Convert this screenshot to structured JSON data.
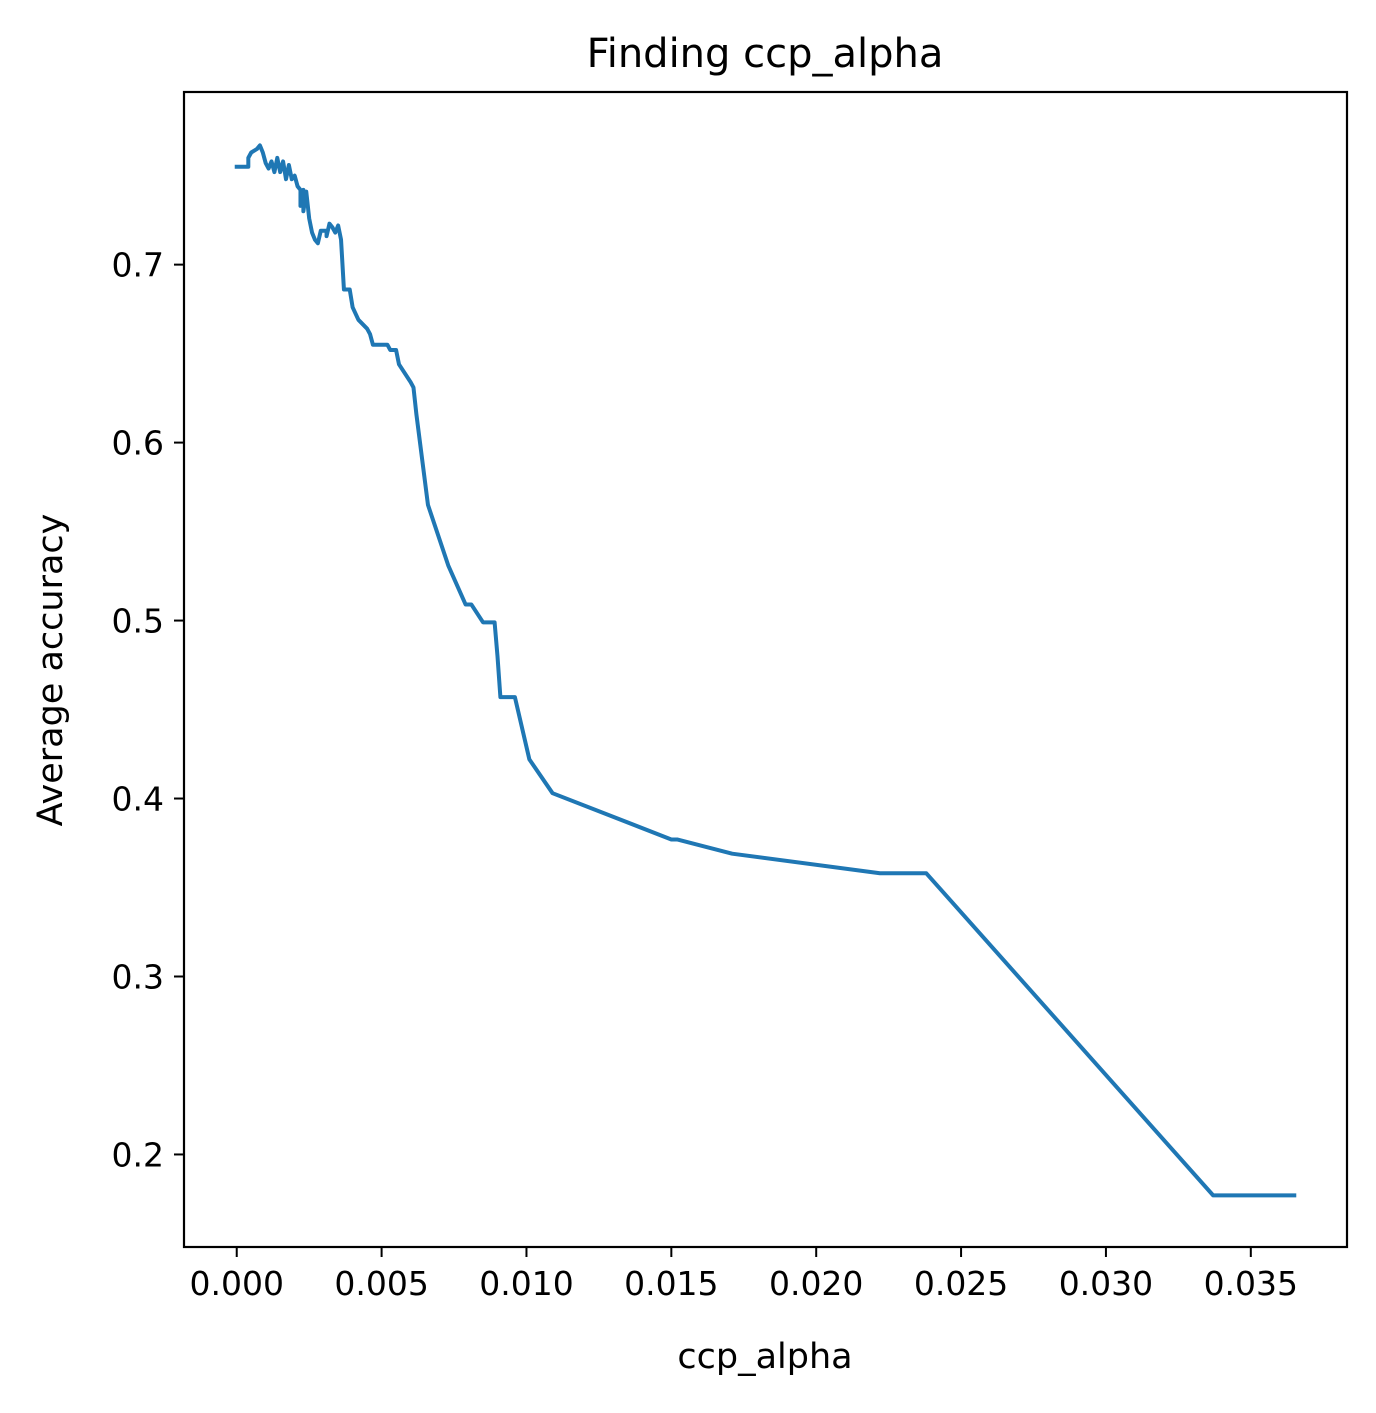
{
  "chart_data": {
    "type": "line",
    "title": "Finding ccp_alpha",
    "xlabel": "ccp_alpha",
    "ylabel": "Average accuracy",
    "xlim": [
      -0.00182,
      0.03832
    ],
    "ylim": [
      0.148,
      0.797
    ],
    "grid": false,
    "legend": "none",
    "line_color": "#1f77b4",
    "x_ticks": [
      {
        "value": 0.0,
        "label": "0.000"
      },
      {
        "value": 0.005,
        "label": "0.005"
      },
      {
        "value": 0.01,
        "label": "0.010"
      },
      {
        "value": 0.015,
        "label": "0.015"
      },
      {
        "value": 0.02,
        "label": "0.020"
      },
      {
        "value": 0.025,
        "label": "0.025"
      },
      {
        "value": 0.03,
        "label": "0.030"
      },
      {
        "value": 0.035,
        "label": "0.035"
      }
    ],
    "y_ticks": [
      {
        "value": 0.2,
        "label": "0.2"
      },
      {
        "value": 0.3,
        "label": "0.3"
      },
      {
        "value": 0.4,
        "label": "0.4"
      },
      {
        "value": 0.5,
        "label": "0.5"
      },
      {
        "value": 0.6,
        "label": "0.6"
      },
      {
        "value": 0.7,
        "label": "0.7"
      }
    ],
    "series": [
      {
        "points": [
          [
            0.0,
            0.755
          ],
          [
            0.0004,
            0.755
          ],
          [
            0.0004,
            0.76
          ],
          [
            0.0005,
            0.763
          ],
          [
            0.0007,
            0.765
          ],
          [
            0.0008,
            0.767
          ],
          [
            0.0009,
            0.763
          ],
          [
            0.001,
            0.757
          ],
          [
            0.0011,
            0.754
          ],
          [
            0.0012,
            0.758
          ],
          [
            0.0013,
            0.752
          ],
          [
            0.0014,
            0.76
          ],
          [
            0.0015,
            0.752
          ],
          [
            0.0016,
            0.758
          ],
          [
            0.0017,
            0.748
          ],
          [
            0.0018,
            0.756
          ],
          [
            0.0019,
            0.748
          ],
          [
            0.002,
            0.75
          ],
          [
            0.0021,
            0.744
          ],
          [
            0.0022,
            0.742
          ],
          [
            0.0022,
            0.733
          ],
          [
            0.0023,
            0.742
          ],
          [
            0.0023,
            0.73
          ],
          [
            0.0024,
            0.741
          ],
          [
            0.0025,
            0.726
          ],
          [
            0.0026,
            0.718
          ],
          [
            0.0027,
            0.714
          ],
          [
            0.0028,
            0.712
          ],
          [
            0.0029,
            0.719
          ],
          [
            0.0031,
            0.719
          ],
          [
            0.0031,
            0.716
          ],
          [
            0.0032,
            0.723
          ],
          [
            0.0033,
            0.721
          ],
          [
            0.0034,
            0.718
          ],
          [
            0.0035,
            0.722
          ],
          [
            0.0036,
            0.714
          ],
          [
            0.0037,
            0.686
          ],
          [
            0.0039,
            0.686
          ],
          [
            0.004,
            0.676
          ],
          [
            0.0042,
            0.669
          ],
          [
            0.0045,
            0.664
          ],
          [
            0.0046,
            0.661
          ],
          [
            0.0047,
            0.655
          ],
          [
            0.0052,
            0.655
          ],
          [
            0.0053,
            0.652
          ],
          [
            0.0055,
            0.652
          ],
          [
            0.0056,
            0.644
          ],
          [
            0.006,
            0.634
          ],
          [
            0.0061,
            0.631
          ],
          [
            0.0062,
            0.616
          ],
          [
            0.0066,
            0.565
          ],
          [
            0.0073,
            0.531
          ],
          [
            0.0079,
            0.509
          ],
          [
            0.0081,
            0.509
          ],
          [
            0.0085,
            0.499
          ],
          [
            0.0089,
            0.499
          ],
          [
            0.009,
            0.48
          ],
          [
            0.0091,
            0.457
          ],
          [
            0.0096,
            0.457
          ],
          [
            0.0101,
            0.422
          ],
          [
            0.0109,
            0.403
          ],
          [
            0.015,
            0.377
          ],
          [
            0.0152,
            0.377
          ],
          [
            0.0171,
            0.369
          ],
          [
            0.0222,
            0.358
          ],
          [
            0.0238,
            0.358
          ],
          [
            0.0337,
            0.177
          ],
          [
            0.0365,
            0.177
          ]
        ]
      }
    ]
  }
}
